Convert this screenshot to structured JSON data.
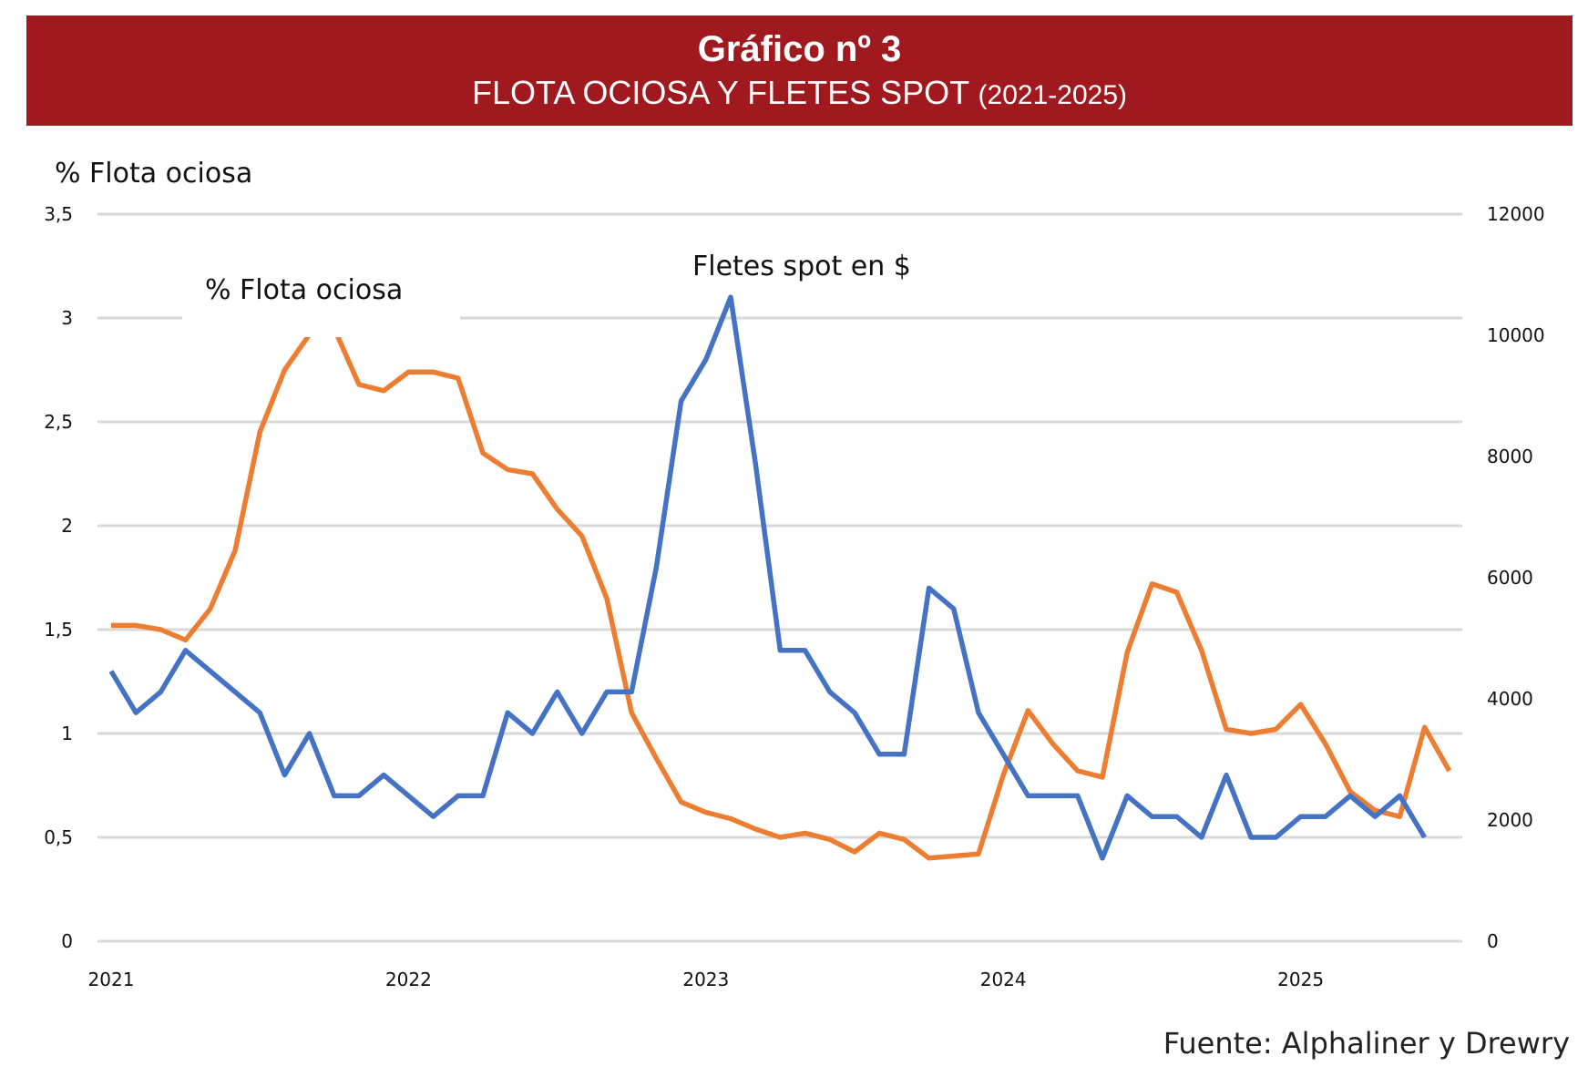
{
  "header": {
    "title": "Gráfico nº 3",
    "subtitle": "FLOTA OCIOSA Y FLETES SPOT",
    "subtitle_years": "(2021-2025)",
    "background_color": "#a0191e"
  },
  "source": "Fuente: Alphaliner y Drewry",
  "chart_data": {
    "type": "line",
    "title": "FLOTA OCIOSA Y FLETES SPOT (2021-2025)",
    "ylabel": "% Flota ociosa",
    "y2label": "Fletes spot en $",
    "ylim": [
      0,
      3.5
    ],
    "y2lim": [
      0,
      12000
    ],
    "yticks": [
      "0",
      "0,5",
      "1",
      "1,5",
      "2",
      "2,5",
      "3",
      "3,5"
    ],
    "y2ticks": [
      "0",
      "2000",
      "4000",
      "6000",
      "8000",
      "10000",
      "12000"
    ],
    "xticks": [
      "2021",
      "2022",
      "2023",
      "2024",
      "2025"
    ],
    "x_start": "2021-01",
    "x_frequency": "monthly",
    "grid": true,
    "annotations": [
      {
        "text": "% Flota ociosa",
        "series": "% Flota ociosa"
      },
      {
        "text": "Fletes spot en $",
        "series": "Fletes spot en $"
      }
    ],
    "series": [
      {
        "name": "% Flota ociosa",
        "axis": "left",
        "color": "#ed7d31",
        "values": [
          1.52,
          1.52,
          1.5,
          1.45,
          1.6,
          1.88,
          2.45,
          2.75,
          2.92,
          2.95,
          2.68,
          2.65,
          2.74,
          2.74,
          2.71,
          2.35,
          2.27,
          2.25,
          2.08,
          1.95,
          1.65,
          1.1,
          0.88,
          0.67,
          0.62,
          0.59,
          0.54,
          0.5,
          0.52,
          0.49,
          0.43,
          0.52,
          0.49,
          0.4,
          0.41,
          0.42,
          0.8,
          1.11,
          0.95,
          0.82,
          0.79,
          1.39,
          1.72,
          1.68,
          1.4,
          1.02,
          1.0,
          1.02,
          1.14,
          0.95,
          0.72,
          0.63,
          0.6,
          1.03,
          0.82
        ]
      },
      {
        "name": "Fletes spot en $",
        "axis": "right",
        "color": "#4472c4",
        "values": [
          4457,
          3771,
          4114,
          4800,
          4457,
          4114,
          3771,
          2743,
          3429,
          2400,
          2400,
          2743,
          2400,
          2057,
          2400,
          2400,
          3771,
          3429,
          4114,
          3429,
          4114,
          4114,
          6171,
          8914,
          9600,
          10629,
          7886,
          4800,
          4800,
          4114,
          3771,
          3086,
          3086,
          5829,
          5486,
          3771,
          3086,
          2400,
          2400,
          2400,
          1371,
          2400,
          2057,
          2057,
          1714,
          2743,
          1714,
          1714,
          2057,
          2057,
          2400,
          2057,
          2400,
          1714
        ]
      }
    ]
  }
}
